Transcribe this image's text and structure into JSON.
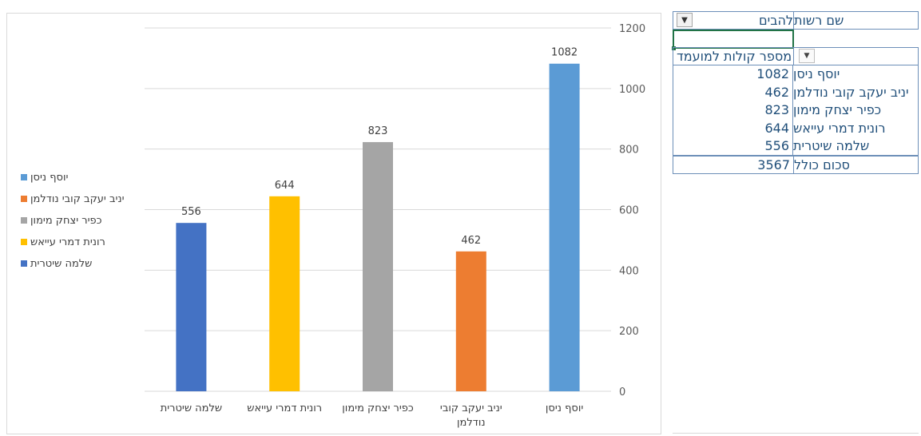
{
  "chart_data": {
    "type": "bar",
    "title": "",
    "xlabel": "",
    "ylabel": "",
    "ylim": [
      0,
      1200
    ],
    "yticks": [
      "0",
      "200",
      "400",
      "600",
      "800",
      "1000",
      "1200"
    ],
    "yaxis_position": "right",
    "grid": true,
    "legend_position": "left",
    "categories": [
      [
        "שלמה שיטרית"
      ],
      [
        "רונית דמרי עייאש"
      ],
      [
        "כפיר יצחק מימון"
      ],
      [
        "יניב יעקב קובי",
        "נודלמן"
      ],
      [
        "יוסף ניסן"
      ]
    ],
    "values": [
      556,
      644,
      823,
      462,
      1082
    ],
    "colors": [
      "#4472c4",
      "#ffc000",
      "#a5a5a5",
      "#ed7d31",
      "#5b9bd5"
    ],
    "legend": [
      {
        "name": "יוסף ניסן",
        "color": "#5b9bd5"
      },
      {
        "name": "יניב יעקב קובי נודלמן",
        "color": "#ed7d31"
      },
      {
        "name": "כפיר יצחק מימון",
        "color": "#a5a5a5"
      },
      {
        "name": "רונית דמרי עייאש",
        "color": "#ffc000"
      },
      {
        "name": "שלמה שיטרית",
        "color": "#4472c4"
      }
    ]
  },
  "pivot": {
    "filter_label": "שם רשות",
    "filter_value": "להבים",
    "filter_icon": "filter-icon",
    "values_header": "מספר קולות למועמד",
    "dropdown_icon": "dropdown-arrow-icon",
    "rows": [
      {
        "name": "יוסף ניסן",
        "value": "1082"
      },
      {
        "name": "יניב יעקב קובי נודלמן",
        "value": "462"
      },
      {
        "name": "כפיר יצחק מימון",
        "value": "823"
      },
      {
        "name": "רונית דמרי עייאש",
        "value": "644"
      },
      {
        "name": "שלמה שיטרית",
        "value": "556"
      }
    ],
    "total_label": "סכום כולל",
    "total_value": "3567"
  }
}
